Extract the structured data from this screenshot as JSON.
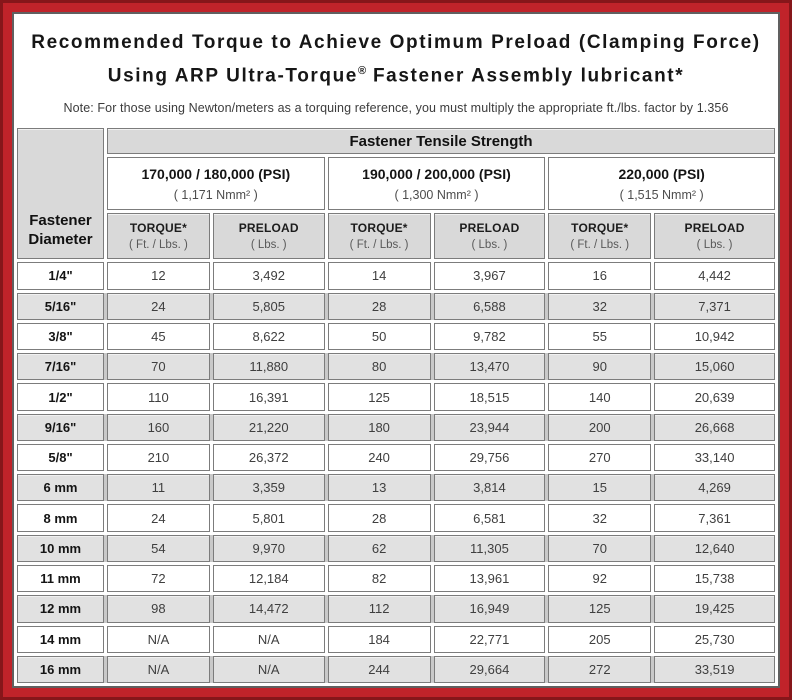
{
  "header": {
    "title_line1": "Recommended Torque to Achieve Optimum Preload (Clamping Force)",
    "title_line2_pre": "Using ARP Ultra-Torque",
    "title_line2_sup": "®",
    "title_line2_post": " Fastener Assembly lubricant*",
    "note": "Note: For those using Newton/meters as a torquing reference, you must multiply the appropriate ft./lbs. factor by 1.356"
  },
  "table": {
    "corner_line1": "Fastener",
    "corner_line2": "Diameter",
    "tensile_header": "Fastener Tensile Strength",
    "psi_groups": [
      {
        "label": "170,000 / 180,000 (PSI)",
        "nmm": "( 1,171 Nmm² )"
      },
      {
        "label": "190,000 / 200,000 (PSI)",
        "nmm": "( 1,300 Nmm² )"
      },
      {
        "label": "220,000 (PSI)",
        "nmm": "( 1,515 Nmm² )"
      }
    ],
    "columns": [
      {
        "label": "TORQUE*",
        "unit": "( Ft. / Lbs. )"
      },
      {
        "label": "PRELOAD",
        "unit": "( Lbs. )"
      },
      {
        "label": "TORQUE*",
        "unit": "( Ft. / Lbs. )"
      },
      {
        "label": "PRELOAD",
        "unit": "( Lbs. )"
      },
      {
        "label": "TORQUE*",
        "unit": "( Ft. / Lbs. )"
      },
      {
        "label": "PRELOAD",
        "unit": "( Lbs. )"
      }
    ],
    "rows": [
      {
        "diameter": "1/4\"",
        "values": [
          "12",
          "3,492",
          "14",
          "3,967",
          "16",
          "4,442"
        ]
      },
      {
        "diameter": "5/16\"",
        "values": [
          "24",
          "5,805",
          "28",
          "6,588",
          "32",
          "7,371"
        ]
      },
      {
        "diameter": "3/8\"",
        "values": [
          "45",
          "8,622",
          "50",
          "9,782",
          "55",
          "10,942"
        ]
      },
      {
        "diameter": "7/16\"",
        "values": [
          "70",
          "11,880",
          "80",
          "13,470",
          "90",
          "15,060"
        ]
      },
      {
        "diameter": "1/2\"",
        "values": [
          "110",
          "16,391",
          "125",
          "18,515",
          "140",
          "20,639"
        ]
      },
      {
        "diameter": "9/16\"",
        "values": [
          "160",
          "21,220",
          "180",
          "23,944",
          "200",
          "26,668"
        ]
      },
      {
        "diameter": "5/8\"",
        "values": [
          "210",
          "26,372",
          "240",
          "29,756",
          "270",
          "33,140"
        ]
      },
      {
        "diameter": "6 mm",
        "values": [
          "11",
          "3,359",
          "13",
          "3,814",
          "15",
          "4,269"
        ]
      },
      {
        "diameter": "8 mm",
        "values": [
          "24",
          "5,801",
          "28",
          "6,581",
          "32",
          "7,361"
        ]
      },
      {
        "diameter": "10 mm",
        "values": [
          "54",
          "9,970",
          "62",
          "11,305",
          "70",
          "12,640"
        ]
      },
      {
        "diameter": "11 mm",
        "values": [
          "72",
          "12,184",
          "82",
          "13,961",
          "92",
          "15,738"
        ]
      },
      {
        "diameter": "12 mm",
        "values": [
          "98",
          "14,472",
          "112",
          "16,949",
          "125",
          "19,425"
        ]
      },
      {
        "diameter": "14 mm",
        "values": [
          "N/A",
          "N/A",
          "184",
          "22,771",
          "205",
          "25,730"
        ]
      },
      {
        "diameter": "16 mm",
        "values": [
          "N/A",
          "N/A",
          "244",
          "29,664",
          "272",
          "33,519"
        ]
      }
    ]
  },
  "colors": {
    "border_red": "#c0232a",
    "border_dark_red": "#86161a",
    "frame_gray": "#606060",
    "header_gray": "#d9d9d9",
    "shaded_row": "#e1e1e1",
    "cell_border": "#7c7c7c"
  }
}
